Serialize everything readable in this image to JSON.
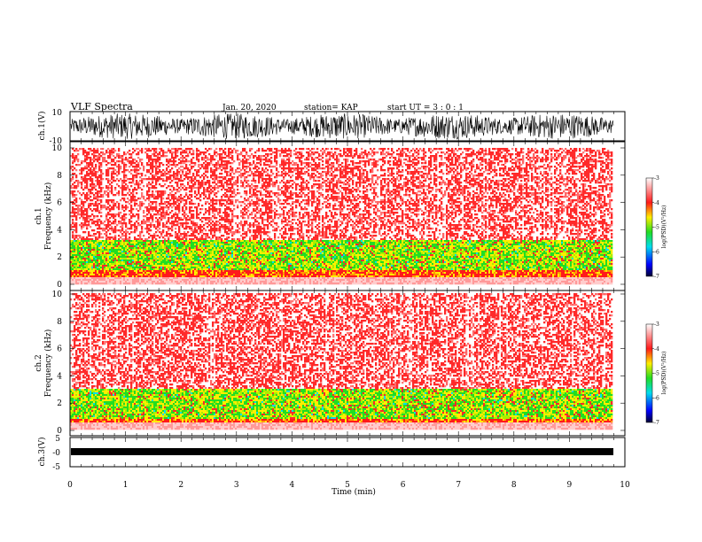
{
  "header": {
    "title": "VLF Spectra",
    "date": "Jan. 20, 2020",
    "station": "station= KAP",
    "start": "start  UT =   3 : 0  : 1"
  },
  "chart_data": [
    {
      "type": "line",
      "name": "ch1-waveform",
      "ylabel": "ch.1(V)",
      "ylim": [
        -10,
        10
      ],
      "yticks": [
        "10",
        "-10"
      ],
      "xlim": [
        0,
        10
      ]
    },
    {
      "type": "heatmap",
      "name": "ch1-spectrogram",
      "ylabel": "ch.1\nFrequency (kHz)",
      "ylabel_line1": "ch.1",
      "ylabel_line2": "Frequency (kHz)",
      "ylim": [
        0,
        10
      ],
      "yticks": [
        "0",
        "2",
        "4",
        "6",
        "8",
        "10"
      ],
      "xlim": [
        0,
        9.8
      ],
      "colorbar": {
        "label": "log(PSD)(V²/Hz)",
        "range": [
          -7,
          -3
        ],
        "ticks": [
          "-3",
          "-4",
          "-5",
          "-6",
          "-7"
        ]
      }
    },
    {
      "type": "heatmap",
      "name": "ch2-spectrogram",
      "ylabel_line1": "ch.2",
      "ylabel_line2": "Frequency (kHz)",
      "ylim": [
        0,
        10
      ],
      "yticks": [
        "0",
        "2",
        "4",
        "6",
        "8",
        "10"
      ],
      "xlim": [
        0,
        9.8
      ],
      "colorbar": {
        "label": "log(PSD)(V²/Hz)",
        "range": [
          -7,
          -3
        ],
        "ticks": [
          "-3",
          "-4",
          "-5",
          "-6",
          "-7"
        ]
      }
    },
    {
      "type": "line",
      "name": "ch3-waveform",
      "ylabel": "ch.3(V)",
      "ylim": [
        -5,
        5
      ],
      "yticks": [
        "5",
        "-0",
        "-5"
      ],
      "xlim": [
        0,
        10
      ]
    }
  ],
  "xaxis": {
    "label": "Time (min)",
    "ticks": [
      "0",
      "1",
      "2",
      "3",
      "4",
      "5",
      "6",
      "7",
      "8",
      "9",
      "10"
    ]
  },
  "colors": {
    "red": "#ff1a1a",
    "yellow": "#ffee00",
    "green": "#22dd22",
    "cyan": "#00ddee",
    "blue": "#0000ff",
    "navy": "#000033"
  }
}
